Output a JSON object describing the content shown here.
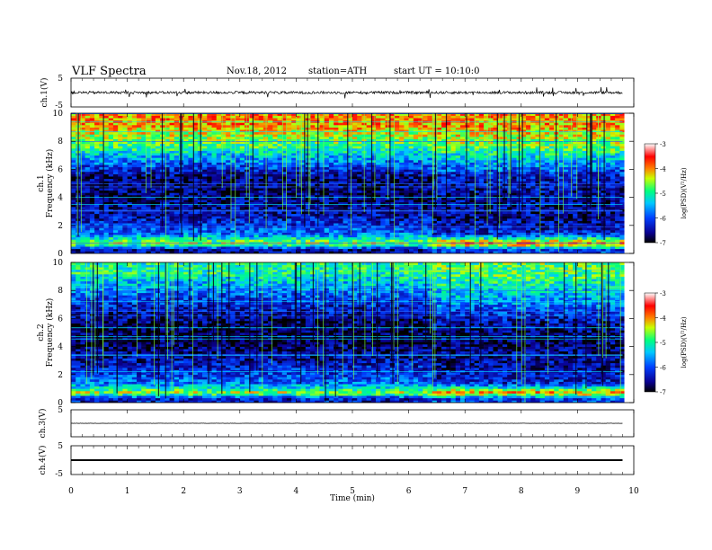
{
  "header": {
    "title": "VLF  Spectra",
    "date": "Nov.18, 2012",
    "station": "station=ATH",
    "start": "start  UT  =    10:10:0"
  },
  "colors": {
    "colormap": [
      "#000000",
      "#1a0050",
      "#0010a0",
      "#0050ff",
      "#00d8ff",
      "#00ff80",
      "#ffff00",
      "#ff8000",
      "#ff0000",
      "#ffffff"
    ],
    "trace": "#000000"
  },
  "chart_data": [
    {
      "type": "line",
      "panel": "ch1-waveform",
      "ylabel": "ch.1(V)",
      "ylim": [
        -5,
        5
      ],
      "yticks": [
        "5",
        "-5"
      ],
      "x_range": [
        0,
        9.8
      ],
      "description_values": {
        "baseline": 0.0,
        "typical_amplitude": 0.5,
        "max_spike": 2.0
      }
    },
    {
      "type": "heatmap",
      "panel": "ch1-spectrogram",
      "ylabel_channel": "ch.1",
      "ylabel": "Frequency  (kHz)",
      "ylim": [
        0,
        10
      ],
      "yticks": [
        "0",
        "2",
        "4",
        "6",
        "8",
        "10"
      ],
      "x_range": [
        0,
        9.8
      ],
      "change_time_min": 6.4,
      "bands_khz": [
        {
          "f": 0.3,
          "logpsd_before": -6.5,
          "logpsd_after": -6.0
        },
        {
          "f": 0.7,
          "logpsd_before": -4.5,
          "logpsd_after": -3.8
        },
        {
          "f": 1.4,
          "logpsd_before": -5.8,
          "logpsd_after": -6.2
        },
        {
          "f": 2.6,
          "logpsd_before": -6.4,
          "logpsd_after": -6.6
        },
        {
          "f": 4.2,
          "logpsd_before": -6.7,
          "logpsd_after": -6.5
        },
        {
          "f": 5.5,
          "logpsd_before": -6.6,
          "logpsd_after": -6.3
        },
        {
          "f": 7.5,
          "logpsd_before": -5.0,
          "logpsd_after": -4.8
        },
        {
          "f": 9.3,
          "logpsd_before": -4.0,
          "logpsd_after": -4.0
        }
      ]
    },
    {
      "type": "heatmap",
      "panel": "ch2-spectrogram",
      "ylabel_channel": "ch.2",
      "ylabel": "Frequency  (kHz)",
      "ylim": [
        0,
        10
      ],
      "yticks": [
        "0",
        "2",
        "4",
        "6",
        "8",
        "10"
      ],
      "x_range": [
        0,
        9.8
      ],
      "change_time_min": 6.4,
      "bands_khz": [
        {
          "f": 0.3,
          "logpsd_before": -6.3,
          "logpsd_after": -6.0
        },
        {
          "f": 0.7,
          "logpsd_before": -4.5,
          "logpsd_after": -4.0
        },
        {
          "f": 1.4,
          "logpsd_before": -5.8,
          "logpsd_after": -6.2
        },
        {
          "f": 2.6,
          "logpsd_before": -6.3,
          "logpsd_after": -6.5
        },
        {
          "f": 4.2,
          "logpsd_before": -6.8,
          "logpsd_after": -6.7
        },
        {
          "f": 5.5,
          "logpsd_before": -6.8,
          "logpsd_after": -6.6
        },
        {
          "f": 7.5,
          "logpsd_before": -6.0,
          "logpsd_after": -5.5
        },
        {
          "f": 9.3,
          "logpsd_before": -5.0,
          "logpsd_after": -4.8
        }
      ]
    },
    {
      "type": "line",
      "panel": "ch3-waveform",
      "ylabel": "ch.3(V)",
      "ylim": [
        -5,
        5
      ],
      "yticks": [
        "5"
      ],
      "x_range": [
        0,
        9.8
      ],
      "description_values": {
        "baseline": 0.0
      }
    },
    {
      "type": "line",
      "panel": "ch4-waveform",
      "ylabel": "ch.4(V)",
      "ylim": [
        -5,
        5
      ],
      "yticks": [
        "5",
        "-5"
      ],
      "x_range": [
        0,
        9.8
      ],
      "description_values": {
        "baseline": 0.0,
        "band_halfwidth": 0.3
      }
    }
  ],
  "colorbar": {
    "label": "log(PSD)(V²/Hz)",
    "range": [
      -7,
      -3
    ],
    "ticks": [
      "-3",
      "-4",
      "-5",
      "-6",
      "-7"
    ]
  },
  "xaxis": {
    "label": "Time  (min)",
    "range": [
      0,
      10
    ],
    "ticks": [
      "0",
      "1",
      "2",
      "3",
      "4",
      "5",
      "6",
      "7",
      "8",
      "9",
      "10"
    ]
  }
}
